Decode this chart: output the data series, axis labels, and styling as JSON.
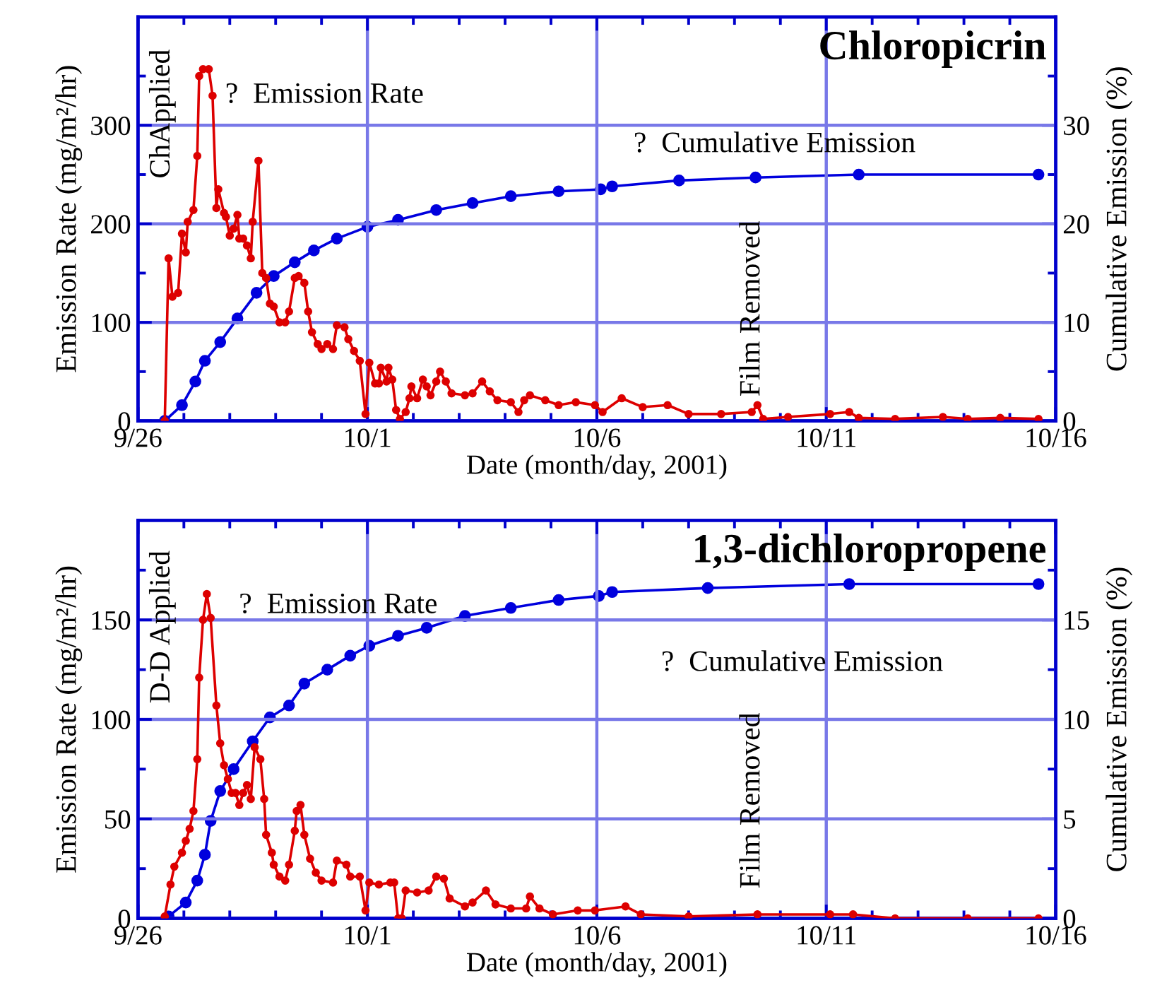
{
  "chart_data": [
    {
      "type": "line",
      "title": "Chloropicrin",
      "xlabel": "Date (month/day, 2001)",
      "ylabel": "Emission Rate (mg/m²/hr)",
      "y2label": "Cumulative Emission (%)",
      "xlim": [
        "2001-09-26",
        "2001-10-16"
      ],
      "xticks": [
        {
          "value": "2001-09-26",
          "label": "9/26"
        },
        {
          "value": "2001-10-01",
          "label": "10/1"
        },
        {
          "value": "2001-10-06",
          "label": "10/6"
        },
        {
          "value": "2001-10-11",
          "label": "10/11"
        },
        {
          "value": "2001-10-16",
          "label": "10/16"
        },
        {
          "value": "2001-09-27",
          "label": null
        },
        {
          "value": "2001-09-28",
          "label": null
        },
        {
          "value": "2001-09-29",
          "label": null
        },
        {
          "value": "2001-09-30",
          "label": null
        },
        {
          "value": "2001-10-02",
          "label": null
        },
        {
          "value": "2001-10-03",
          "label": null
        },
        {
          "value": "2001-10-04",
          "label": null
        },
        {
          "value": "2001-10-05",
          "label": null
        },
        {
          "value": "2001-10-07",
          "label": null
        },
        {
          "value": "2001-10-08",
          "label": null
        },
        {
          "value": "2001-10-09",
          "label": null
        },
        {
          "value": "2001-10-10",
          "label": null
        },
        {
          "value": "2001-10-12",
          "label": null
        },
        {
          "value": "2001-10-13",
          "label": null
        },
        {
          "value": "2001-10-14",
          "label": null
        },
        {
          "value": "2001-10-15",
          "label": null
        }
      ],
      "ylim": [
        0,
        410
      ],
      "yticks": [
        0,
        100,
        200,
        300,
        {
          "value": 50,
          "label": null
        },
        {
          "value": 150,
          "label": null
        },
        {
          "value": 250,
          "label": null
        },
        {
          "value": 350,
          "label": null
        }
      ],
      "y2lim": [
        0,
        41
      ],
      "y2ticks": [
        0,
        10,
        20,
        30,
        {
          "value": 5,
          "label": null
        },
        {
          "value": 15,
          "label": null
        },
        {
          "value": 25,
          "label": null
        },
        {
          "value": 35,
          "label": null
        }
      ],
      "grid": true,
      "marker": "circle",
      "line_style": "solid",
      "annotations": [
        "ChApplied",
        "?  Emission Rate",
        "?  Cumulative Emission",
        "Film Removed"
      ],
      "series": [
        {
          "color": "#dd0000",
          "x": [
            "2001-09-26T14:00",
            "2001-09-26T16:00",
            "2001-09-26T18:00",
            "2001-09-26T21:00",
            "2001-09-26T23:00",
            "2001-09-27T01:00",
            "2001-09-27T02:00",
            "2001-09-27T05:00",
            "2001-09-27T07:00",
            "2001-09-27T08:00",
            "2001-09-27T10:00",
            "2001-09-27T13:00",
            "2001-09-27T15:00",
            "2001-09-27T17:00",
            "2001-09-27T18:00",
            "2001-09-27T21:00",
            "2001-09-27T22:00",
            "2001-09-28T00:00",
            "2001-09-28T02:00",
            "2001-09-28T04:00",
            "2001-09-28T05:00",
            "2001-09-28T07:00",
            "2001-09-28T09:00",
            "2001-09-28T11:00",
            "2001-09-28T12:00",
            "2001-09-28T15:00",
            "2001-09-28T17:00",
            "2001-09-28T19:00",
            "2001-09-28T21:00",
            "2001-09-28T23:00",
            "2001-09-29T02:00",
            "2001-09-29T05:00",
            "2001-09-29T07:00",
            "2001-09-29T10:00",
            "2001-09-29T12:00",
            "2001-09-29T15:00",
            "2001-09-29T17:00",
            "2001-09-29T19:00",
            "2001-09-29T22:00",
            "2001-09-30T00:00",
            "2001-09-30T03:00",
            "2001-09-30T06:00",
            "2001-09-30T08:00",
            "2001-09-30T12:00",
            "2001-09-30T14:00",
            "2001-09-30T17:00",
            "2001-09-30T20:00",
            "2001-09-30T23:00",
            "2001-10-01T01:00",
            "2001-10-01T04:00",
            "2001-10-01T06:00",
            "2001-10-01T07:00",
            "2001-10-01T10:00",
            "2001-10-01T11:00",
            "2001-10-01T13:00",
            "2001-10-01T15:00",
            "2001-10-01T17:00",
            "2001-10-01T20:00",
            "2001-10-01T22:00",
            "2001-10-01T23:00",
            "2001-10-02T02:00",
            "2001-10-02T05:00",
            "2001-10-02T07:00",
            "2001-10-02T09:00",
            "2001-10-02T12:00",
            "2001-10-02T14:00",
            "2001-10-02T17:00",
            "2001-10-02T20:00",
            "2001-10-03T03:00",
            "2001-10-03T07:00",
            "2001-10-03T12:00",
            "2001-10-03T16:00",
            "2001-10-03T20:00",
            "2001-10-04T03:00",
            "2001-10-04T07:00",
            "2001-10-04T10:00",
            "2001-10-04T13:00",
            "2001-10-04T21:00",
            "2001-10-05T04:00",
            "2001-10-05T13:00",
            "2001-10-05T23:00",
            "2001-10-06T03:00",
            "2001-10-06T13:00",
            "2001-10-07T00:00",
            "2001-10-07T13:00",
            "2001-10-08T00:00",
            "2001-10-08T17:00",
            "2001-10-09T09:00",
            "2001-10-09T12:00",
            "2001-10-09T15:00",
            "2001-10-10T04:00",
            "2001-10-11T02:00",
            "2001-10-11T12:00",
            "2001-10-11T17:00",
            "2001-10-12T12:00",
            "2001-10-13T13:00",
            "2001-10-14T02:00",
            "2001-10-14T19:00",
            "2001-10-15T15:00"
          ],
          "values": [
            0,
            165,
            126,
            130,
            190,
            171,
            202,
            214,
            269,
            350,
            357,
            357,
            330,
            216,
            235,
            211,
            207,
            188,
            195,
            209,
            185,
            185,
            178,
            165,
            202,
            264,
            150,
            145,
            119,
            116,
            100,
            100,
            111,
            145,
            147,
            140,
            111,
            90,
            78,
            73,
            78,
            73,
            97,
            95,
            83,
            71,
            61,
            7,
            59,
            38,
            38,
            54,
            40,
            54,
            42,
            11,
            2,
            9,
            23,
            35,
            23,
            42,
            35,
            26,
            40,
            50,
            40,
            28,
            26,
            28,
            40,
            30,
            21,
            19,
            9,
            21,
            26,
            21,
            16,
            19,
            16,
            9,
            23,
            14,
            16,
            7,
            7,
            9,
            16,
            2,
            4,
            7,
            9,
            3,
            2,
            4,
            2,
            3,
            2
          ]
        },
        {
          "color": "#0000dd",
          "axis": "y2",
          "x": [
            "2001-09-26T14:00",
            "2001-09-26T23:00",
            "2001-09-27T06:00",
            "2001-09-27T11:00",
            "2001-09-27T19:00",
            "2001-09-28T04:00",
            "2001-09-28T14:00",
            "2001-09-28T23:00",
            "2001-09-29T10:00",
            "2001-09-29T20:00",
            "2001-09-30T08:00",
            "2001-10-01T00:00",
            "2001-10-01T16:00",
            "2001-10-02T12:00",
            "2001-10-03T07:00",
            "2001-10-04T03:00",
            "2001-10-05T04:00",
            "2001-10-06T02:00",
            "2001-10-06T08:00",
            "2001-10-07T19:00",
            "2001-10-09T11:00",
            "2001-10-11T17:00",
            "2001-10-15T15:00"
          ],
          "values": [
            0,
            1.6,
            4.0,
            6.1,
            8.0,
            10.4,
            13.0,
            14.7,
            16.1,
            17.3,
            18.5,
            19.7,
            20.4,
            21.4,
            22.1,
            22.8,
            23.3,
            23.5,
            23.8,
            24.4,
            24.7,
            25.0,
            25.0
          ]
        }
      ]
    },
    {
      "type": "line",
      "title": "1,3-dichloropropene",
      "xlabel": "Date (month/day, 2001)",
      "ylabel": "Emission Rate (mg/m²/hr)",
      "y2label": "Cumulative Emission (%)",
      "xlim": [
        "2001-09-26",
        "2001-10-16"
      ],
      "xticks": [
        {
          "value": "2001-09-26",
          "label": "9/26"
        },
        {
          "value": "2001-10-01",
          "label": "10/1"
        },
        {
          "value": "2001-10-06",
          "label": "10/6"
        },
        {
          "value": "2001-10-11",
          "label": "10/11"
        },
        {
          "value": "2001-10-16",
          "label": "10/16"
        },
        {
          "value": "2001-09-27",
          "label": null
        },
        {
          "value": "2001-09-28",
          "label": null
        },
        {
          "value": "2001-09-29",
          "label": null
        },
        {
          "value": "2001-09-30",
          "label": null
        },
        {
          "value": "2001-10-02",
          "label": null
        },
        {
          "value": "2001-10-03",
          "label": null
        },
        {
          "value": "2001-10-04",
          "label": null
        },
        {
          "value": "2001-10-05",
          "label": null
        },
        {
          "value": "2001-10-07",
          "label": null
        },
        {
          "value": "2001-10-08",
          "label": null
        },
        {
          "value": "2001-10-09",
          "label": null
        },
        {
          "value": "2001-10-10",
          "label": null
        },
        {
          "value": "2001-10-12",
          "label": null
        },
        {
          "value": "2001-10-13",
          "label": null
        },
        {
          "value": "2001-10-14",
          "label": null
        },
        {
          "value": "2001-10-15",
          "label": null
        }
      ],
      "ylim": [
        0,
        200
      ],
      "yticks": [
        0,
        50,
        100,
        150,
        {
          "value": 25,
          "label": null
        },
        {
          "value": 75,
          "label": null
        },
        {
          "value": 125,
          "label": null
        },
        {
          "value": 175,
          "label": null
        }
      ],
      "y2lim": [
        0,
        20
      ],
      "y2ticks": [
        0,
        5,
        10,
        15,
        {
          "value": 2.5,
          "label": null
        },
        {
          "value": 7.5,
          "label": null
        },
        {
          "value": 12.5,
          "label": null
        },
        {
          "value": 17.5,
          "label": null
        }
      ],
      "grid": true,
      "marker": "circle",
      "line_style": "solid",
      "annotations": [
        "D-D Applied",
        "?  Emission Rate",
        "?  Cumulative Emission",
        "Film Removed"
      ],
      "series": [
        {
          "color": "#dd0000",
          "x": [
            "2001-09-26T14:00",
            "2001-09-26T17:00",
            "2001-09-26T19:00",
            "2001-09-26T23:00",
            "2001-09-27T01:00",
            "2001-09-27T03:00",
            "2001-09-27T05:00",
            "2001-09-27T07:00",
            "2001-09-27T08:00",
            "2001-09-27T10:00",
            "2001-09-27T12:00",
            "2001-09-27T14:00",
            "2001-09-27T17:00",
            "2001-09-27T19:00",
            "2001-09-27T21:00",
            "2001-09-27T23:00",
            "2001-09-28T01:00",
            "2001-09-28T03:00",
            "2001-09-28T05:00",
            "2001-09-28T07:00",
            "2001-09-28T09:00",
            "2001-09-28T11:00",
            "2001-09-28T13:00",
            "2001-09-28T16:00",
            "2001-09-28T18:00",
            "2001-09-28T19:00",
            "2001-09-28T22:00",
            "2001-09-28T23:00",
            "2001-09-29T02:00",
            "2001-09-29T05:00",
            "2001-09-29T07:00",
            "2001-09-29T10:00",
            "2001-09-29T11:00",
            "2001-09-29T13:00",
            "2001-09-29T15:00",
            "2001-09-29T18:00",
            "2001-09-29T21:00",
            "2001-09-30T00:00",
            "2001-09-30T06:00",
            "2001-09-30T08:00",
            "2001-09-30T13:00",
            "2001-09-30T15:00",
            "2001-09-30T20:00",
            "2001-09-30T23:00",
            "2001-10-01T01:00",
            "2001-10-01T06:00",
            "2001-10-01T12:00",
            "2001-10-01T14:00",
            "2001-10-01T16:00",
            "2001-10-01T18:00",
            "2001-10-01T20:00",
            "2001-10-02T02:00",
            "2001-10-02T08:00",
            "2001-10-02T12:00",
            "2001-10-02T16:00",
            "2001-10-02T19:00",
            "2001-10-03T03:00",
            "2001-10-03T07:00",
            "2001-10-03T14:00",
            "2001-10-03T19:00",
            "2001-10-04T03:00",
            "2001-10-04T11:00",
            "2001-10-04T13:00",
            "2001-10-04T18:00",
            "2001-10-05T01:00",
            "2001-10-05T14:00",
            "2001-10-05T23:00",
            "2001-10-06T15:00",
            "2001-10-06T23:00",
            "2001-10-08T00:00",
            "2001-10-09T12:00",
            "2001-10-11T02:00",
            "2001-10-11T14:00",
            "2001-10-12T12:00",
            "2001-10-14T02:00",
            "2001-10-15T15:00"
          ],
          "values": [
            1,
            17,
            26,
            33,
            39,
            45,
            54,
            80,
            121,
            150,
            163,
            151,
            107,
            88,
            77,
            70,
            63,
            63,
            57,
            63,
            67,
            60,
            86,
            80,
            60,
            42,
            33,
            27,
            21,
            19,
            27,
            44,
            54,
            57,
            42,
            30,
            23,
            19,
            18,
            29,
            27,
            21,
            21,
            4,
            18,
            17,
            18,
            18,
            0,
            0,
            14,
            13,
            14,
            21,
            20,
            10,
            6,
            8,
            14,
            7,
            5,
            5,
            11,
            5,
            2,
            4,
            4,
            6,
            2,
            1,
            2,
            2,
            2,
            0,
            0,
            0
          ]
        },
        {
          "color": "#0000dd",
          "axis": "y2",
          "x": [
            "2001-09-26T16:00",
            "2001-09-27T01:00",
            "2001-09-27T07:00",
            "2001-09-27T11:00",
            "2001-09-27T14:00",
            "2001-09-27T19:00",
            "2001-09-28T02:00",
            "2001-09-28T12:00",
            "2001-09-28T21:00",
            "2001-09-29T07:00",
            "2001-09-29T15:00",
            "2001-09-30T03:00",
            "2001-09-30T15:00",
            "2001-10-01T01:00",
            "2001-10-01T16:00",
            "2001-10-02T07:00",
            "2001-10-03T03:00",
            "2001-10-04T03:00",
            "2001-10-05T04:00",
            "2001-10-06T01:00",
            "2001-10-06T08:00",
            "2001-10-08T10:00",
            "2001-10-11T12:00",
            "2001-10-15T15:00"
          ],
          "values": [
            0.1,
            0.8,
            1.9,
            3.2,
            4.9,
            6.4,
            7.5,
            8.9,
            10.1,
            10.7,
            11.8,
            12.5,
            13.2,
            13.7,
            14.2,
            14.6,
            15.2,
            15.6,
            16.0,
            16.2,
            16.4,
            16.6,
            16.8,
            16.8
          ]
        }
      ]
    }
  ]
}
